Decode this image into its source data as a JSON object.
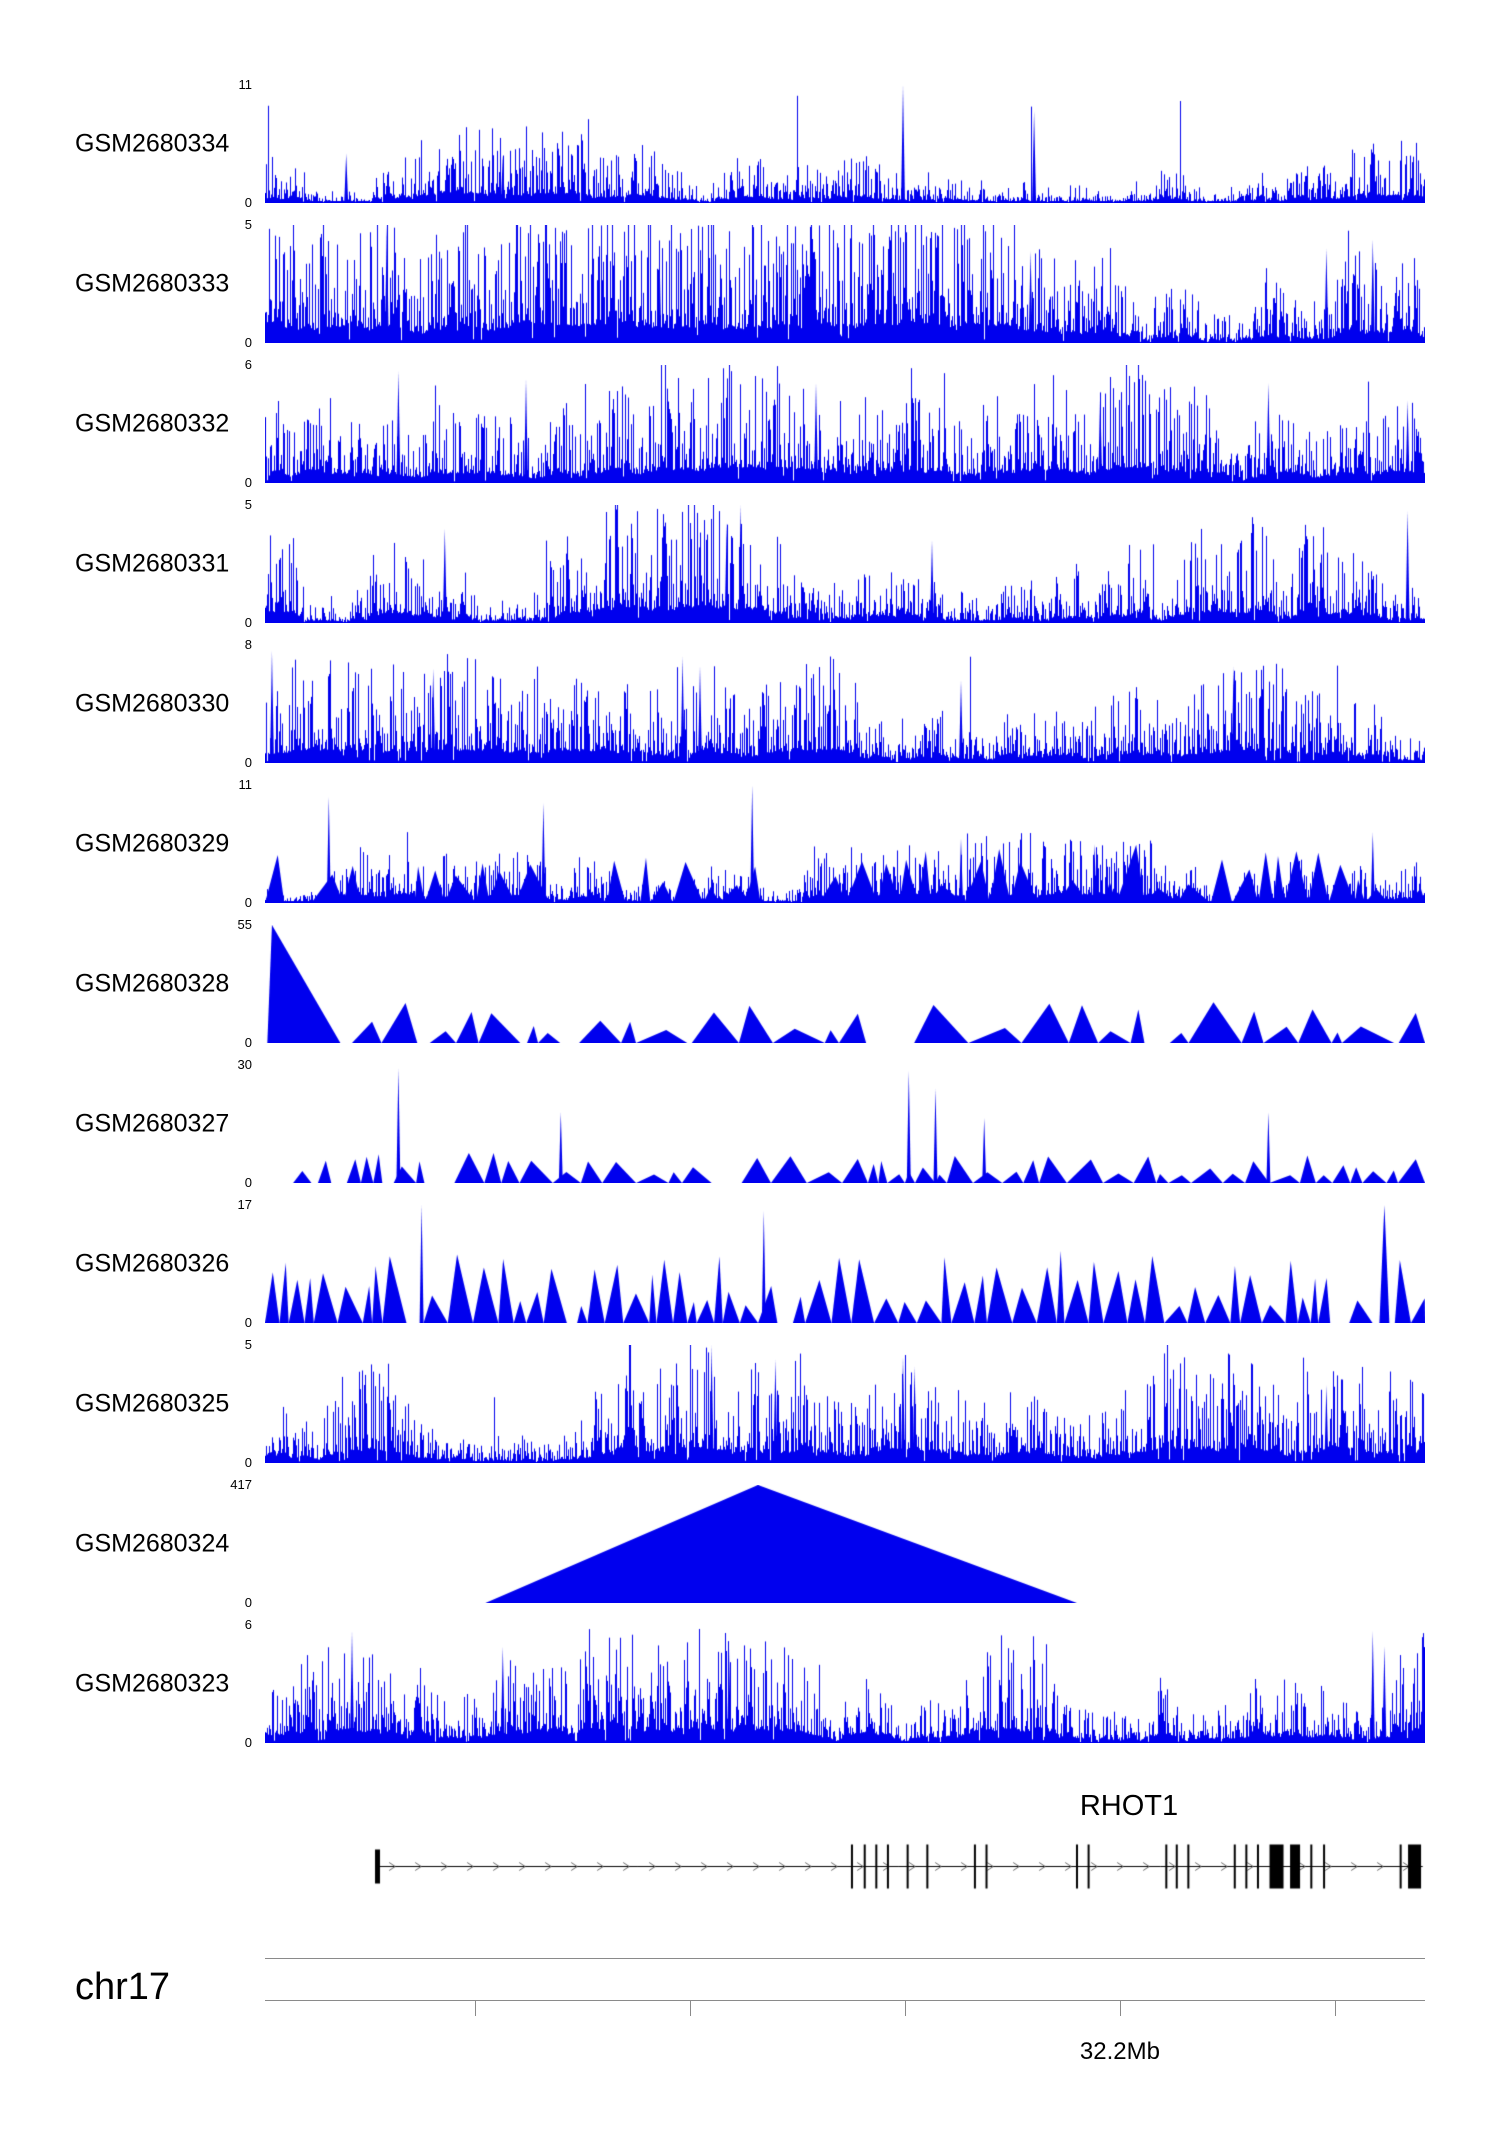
{
  "figure": {
    "background": "#ffffff",
    "signal_color": "#0000ee",
    "axis_color": "#8a8a8a"
  },
  "chart_data": {
    "type": "area",
    "description": "Genome browser read-coverage tracks over chr17 around gene RHOT1",
    "chromosome": "chr17",
    "gene": {
      "name": "RHOT1",
      "span": [
        0.095,
        0.998
      ],
      "strand": "+",
      "exons": [
        {
          "x": 0.097,
          "w": 5,
          "h": 34
        },
        {
          "x": 0.506,
          "w": 2
        },
        {
          "x": 0.517,
          "w": 2
        },
        {
          "x": 0.527,
          "w": 2
        },
        {
          "x": 0.537,
          "w": 2
        },
        {
          "x": 0.554,
          "w": 2
        },
        {
          "x": 0.571,
          "w": 2
        },
        {
          "x": 0.612,
          "w": 2
        },
        {
          "x": 0.622,
          "w": 2
        },
        {
          "x": 0.7,
          "w": 2
        },
        {
          "x": 0.71,
          "w": 2
        },
        {
          "x": 0.777,
          "w": 2
        },
        {
          "x": 0.786,
          "w": 2
        },
        {
          "x": 0.796,
          "w": 2
        },
        {
          "x": 0.836,
          "w": 2
        },
        {
          "x": 0.846,
          "w": 2
        },
        {
          "x": 0.856,
          "w": 2
        },
        {
          "x": 0.872,
          "w": 14
        },
        {
          "x": 0.888,
          "w": 10
        },
        {
          "x": 0.902,
          "w": 2
        },
        {
          "x": 0.913,
          "w": 2
        },
        {
          "x": 0.979,
          "w": 2
        },
        {
          "x": 0.991,
          "w": 13
        }
      ]
    },
    "ruler": {
      "ticks": [
        0.181,
        0.366,
        0.552,
        0.737,
        0.922
      ],
      "labeled_tick_index": 3,
      "label": "32.2Mb"
    },
    "tracks": [
      {
        "label": "GSM2680334",
        "ylim": [
          0,
          11
        ],
        "style": "dense",
        "seed": 101,
        "amp": 0.3,
        "tall_prob": 0.004,
        "features": [
          {
            "x": 0.55,
            "h": 1.0
          },
          {
            "x": 0.663,
            "h": 0.78
          },
          {
            "x": 0.07,
            "h": 0.42
          },
          {
            "x": 0.205,
            "h": 0.4
          }
        ]
      },
      {
        "label": "GSM2680333",
        "ylim": [
          0,
          5
        ],
        "style": "dense",
        "seed": 102,
        "amp": 0.62,
        "tall_prob": 0.005,
        "features": [
          {
            "x": 0.105,
            "h": 1.0
          },
          {
            "x": 0.34,
            "h": 0.8
          },
          {
            "x": 0.66,
            "h": 0.78
          },
          {
            "x": 0.915,
            "h": 0.8
          },
          {
            "x": 0.955,
            "h": 0.88
          }
        ]
      },
      {
        "label": "GSM2680332",
        "ylim": [
          0,
          6
        ],
        "style": "dense",
        "seed": 103,
        "amp": 0.5,
        "tall_prob": 0.005,
        "features": [
          {
            "x": 0.115,
            "h": 0.95
          },
          {
            "x": 0.225,
            "h": 0.88
          },
          {
            "x": 0.475,
            "h": 0.85
          },
          {
            "x": 0.72,
            "h": 0.78
          },
          {
            "x": 0.865,
            "h": 0.85
          },
          {
            "x": 0.985,
            "h": 0.7
          }
        ]
      },
      {
        "label": "GSM2680331",
        "ylim": [
          0,
          5
        ],
        "style": "dense",
        "seed": 104,
        "amp": 0.55,
        "tall_prob": 0.005,
        "features": [
          {
            "x": 0.41,
            "h": 1.0
          },
          {
            "x": 0.398,
            "h": 0.85
          },
          {
            "x": 0.155,
            "h": 0.8
          },
          {
            "x": 0.575,
            "h": 0.7
          },
          {
            "x": 0.985,
            "h": 0.95
          }
        ]
      },
      {
        "label": "GSM2680330",
        "ylim": [
          0,
          8
        ],
        "style": "dense",
        "seed": 105,
        "amp": 0.42,
        "tall_prob": 0.004,
        "features": [
          {
            "x": 0.006,
            "h": 0.95
          },
          {
            "x": 0.145,
            "h": 0.8
          },
          {
            "x": 0.36,
            "h": 0.9
          },
          {
            "x": 0.375,
            "h": 0.82
          },
          {
            "x": 0.6,
            "h": 0.7
          },
          {
            "x": 0.835,
            "h": 0.82
          }
        ]
      },
      {
        "label": "GSM2680329",
        "ylim": [
          0,
          11
        ],
        "style": "mixed",
        "seed": 106,
        "amp": 0.28,
        "tri_amp": 0.4,
        "gap_prob": 0.3,
        "tri_min": 10,
        "tri_range": 25,
        "features": [
          {
            "x": 0.055,
            "h": 0.9
          },
          {
            "x": 0.24,
            "h": 0.85
          },
          {
            "x": 0.42,
            "h": 1.0
          },
          {
            "x": 0.6,
            "h": 0.55
          },
          {
            "x": 0.715,
            "h": 0.5
          },
          {
            "x": 0.955,
            "h": 0.6
          }
        ]
      },
      {
        "label": "GSM2680328",
        "ylim": [
          0,
          55
        ],
        "style": "triangles",
        "seed": 107,
        "amp": 0.27,
        "gap_prob": 0.25,
        "tri_min": 10,
        "tri_range": 45,
        "tri_start": 0.075,
        "features": [
          {
            "type": "tri",
            "x0": 0.002,
            "apex": 0.006,
            "x1": 0.065,
            "h": 1.0
          }
        ]
      },
      {
        "label": "GSM2680327",
        "ylim": [
          0,
          30
        ],
        "style": "triangles",
        "seed": 108,
        "amp": 0.2,
        "gap_prob": 0.22,
        "tri_min": 8,
        "tri_range": 30,
        "features": [
          {
            "x": 0.115,
            "h": 0.97
          },
          {
            "x": 0.255,
            "h": 0.6
          },
          {
            "x": 0.555,
            "h": 0.95
          },
          {
            "x": 0.578,
            "h": 0.8
          },
          {
            "x": 0.62,
            "h": 0.55
          },
          {
            "x": 0.865,
            "h": 0.6
          }
        ]
      },
      {
        "label": "GSM2680326",
        "ylim": [
          0,
          17
        ],
        "style": "triangles",
        "seed": 109,
        "amp": 0.48,
        "gap_prob": 0.07,
        "tri_min": 7,
        "tri_range": 20,
        "features": [
          {
            "x": 0.135,
            "h": 1.0
          },
          {
            "x": 0.43,
            "h": 0.95
          },
          {
            "x": 0.965,
            "h": 1.0,
            "w": 5
          }
        ]
      },
      {
        "label": "GSM2680325",
        "ylim": [
          0,
          5
        ],
        "style": "dense",
        "seed": 110,
        "amp": 0.5,
        "tall_prob": 0.004,
        "features": [
          {
            "x": 0.385,
            "h": 1.0
          },
          {
            "x": 0.44,
            "h": 0.88
          },
          {
            "x": 0.55,
            "h": 0.9
          },
          {
            "x": 0.56,
            "h": 0.82
          },
          {
            "x": 0.915,
            "h": 0.66
          }
        ]
      },
      {
        "label": "GSM2680324",
        "ylim": [
          0,
          417
        ],
        "style": "bigtriangle",
        "seed": 111,
        "amp": 1.0,
        "features": [
          {
            "type": "tri",
            "x0": 0.19,
            "apex": 0.425,
            "x1": 0.7,
            "h": 1.0
          }
        ]
      },
      {
        "label": "GSM2680323",
        "ylim": [
          0,
          6
        ],
        "style": "dense",
        "seed": 112,
        "amp": 0.46,
        "tall_prob": 0.004,
        "features": [
          {
            "x": 0.075,
            "h": 0.95
          },
          {
            "x": 0.205,
            "h": 0.82
          },
          {
            "x": 0.4,
            "h": 0.8
          },
          {
            "x": 0.955,
            "h": 0.95
          },
          {
            "x": 0.965,
            "h": 0.82
          }
        ]
      }
    ]
  }
}
